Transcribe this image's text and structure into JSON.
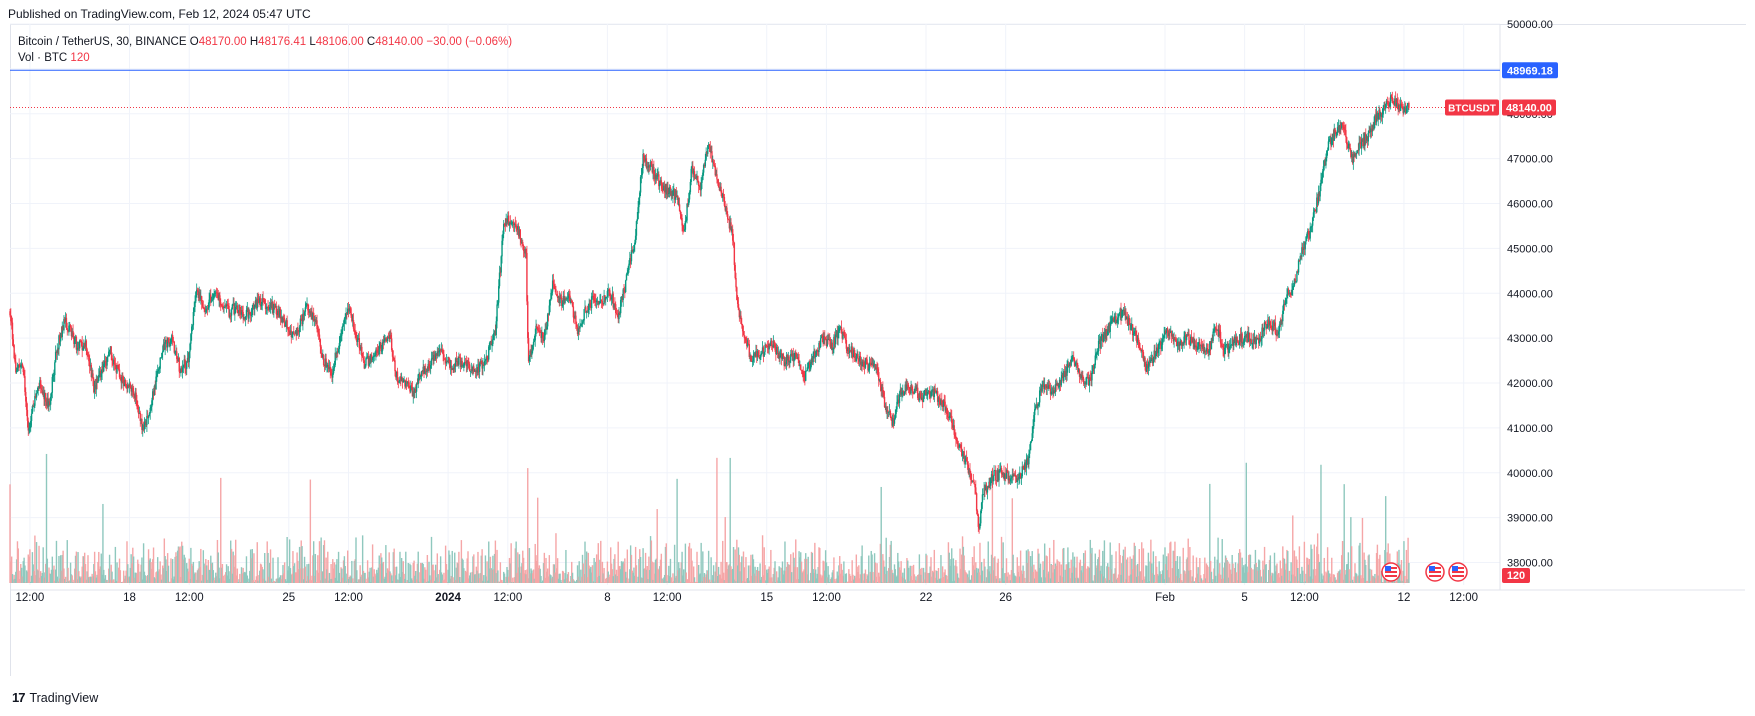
{
  "header": {
    "published": "Published on TradingView.com, Feb 12, 2024 05:47 UTC"
  },
  "legend": {
    "symbol": "Bitcoin / TetherUS, 30, BINANCE",
    "open_label": "O",
    "open": "48170.00",
    "high_label": "H",
    "high": "48176.41",
    "low_label": "L",
    "low": "48106.00",
    "close_label": "C",
    "close": "48140.00",
    "change": "−30.00 (−0.06%)",
    "volume_label": "Vol · BTC",
    "volume": "120"
  },
  "price_line": {
    "value": 48969.18,
    "label": "48969.18",
    "color": "#2962ff"
  },
  "last_price": {
    "ticker": "BTCUSDT",
    "value": 48140.0,
    "label": "48140.00",
    "color": "#f23645"
  },
  "volume_badge": "120",
  "footer": {
    "brand": "TradingView",
    "logo": "17"
  },
  "colors": {
    "up": "#089981",
    "down": "#f23645",
    "up_vol": "#8fc8be",
    "down_vol": "#f5a6a7",
    "grid": "#f0f3fa"
  },
  "chart_data": {
    "type": "candlestick",
    "ylim": [
      37500,
      50000
    ],
    "y_ticks": [
      {
        "value": 50000,
        "label": "50000.00"
      },
      {
        "value": 49000,
        "label": "49000.00"
      },
      {
        "value": 48000,
        "label": "48000.00"
      },
      {
        "value": 47000,
        "label": "47000.00"
      },
      {
        "value": 46000,
        "label": "46000.00"
      },
      {
        "value": 45000,
        "label": "45000.00"
      },
      {
        "value": 44000,
        "label": "44000.00"
      },
      {
        "value": 43000,
        "label": "43000.00"
      },
      {
        "value": 42000,
        "label": "42000.00"
      },
      {
        "value": 41000,
        "label": "41000.00"
      },
      {
        "value": 40000,
        "label": "40000.00"
      },
      {
        "value": 39000,
        "label": "39000.00"
      },
      {
        "value": 38000,
        "label": "38000.00"
      }
    ],
    "x_ticks": [
      {
        "hour": 12,
        "label": "12:00",
        "bold": false
      },
      {
        "hour": 72,
        "label": "18",
        "bold": false
      },
      {
        "hour": 108,
        "label": "12:00",
        "bold": false
      },
      {
        "hour": 168,
        "label": "25",
        "bold": false
      },
      {
        "hour": 204,
        "label": "12:00",
        "bold": false
      },
      {
        "hour": 264,
        "label": "2024",
        "bold": true
      },
      {
        "hour": 300,
        "label": "12:00",
        "bold": false
      },
      {
        "hour": 360,
        "label": "8",
        "bold": false
      },
      {
        "hour": 396,
        "label": "12:00",
        "bold": false
      },
      {
        "hour": 456,
        "label": "15",
        "bold": false
      },
      {
        "hour": 492,
        "label": "12:00",
        "bold": false
      },
      {
        "hour": 552,
        "label": "22",
        "bold": false
      },
      {
        "hour": 600,
        "label": "26",
        "bold": false
      },
      {
        "hour": 696,
        "label": "Feb",
        "bold": false
      },
      {
        "hour": 744,
        "label": "5",
        "bold": false
      },
      {
        "hour": 780,
        "label": "12:00",
        "bold": false
      },
      {
        "hour": 840,
        "label": "12",
        "bold": false
      },
      {
        "hour": 876,
        "label": "12:00",
        "bold": false
      }
    ],
    "x_range_hours": [
      0,
      925
    ],
    "last_candle_hour": 843,
    "candle_interval_hours": 0.5,
    "price_path": [
      [
        0,
        43600
      ],
      [
        3,
        42200
      ],
      [
        6,
        42500
      ],
      [
        9,
        41000
      ],
      [
        14,
        42000
      ],
      [
        19,
        41500
      ],
      [
        23,
        42800
      ],
      [
        27,
        43400
      ],
      [
        33,
        42800
      ],
      [
        37,
        42900
      ],
      [
        41,
        41900
      ],
      [
        45,
        42300
      ],
      [
        49,
        42700
      ],
      [
        53,
        42200
      ],
      [
        58,
        41900
      ],
      [
        62,
        41600
      ],
      [
        65,
        40900
      ],
      [
        70,
        41800
      ],
      [
        75,
        42800
      ],
      [
        79,
        43000
      ],
      [
        83,
        42300
      ],
      [
        87,
        42500
      ],
      [
        91,
        44100
      ],
      [
        95,
        43600
      ],
      [
        99,
        44000
      ],
      [
        103,
        43800
      ],
      [
        107,
        43600
      ],
      [
        111,
        43700
      ],
      [
        115,
        43500
      ],
      [
        121,
        43800
      ],
      [
        127,
        43700
      ],
      [
        131,
        43600
      ],
      [
        135,
        43300
      ],
      [
        139,
        43000
      ],
      [
        145,
        43700
      ],
      [
        149,
        43400
      ],
      [
        153,
        42500
      ],
      [
        157,
        42200
      ],
      [
        161,
        43000
      ],
      [
        165,
        43700
      ],
      [
        169,
        43100
      ],
      [
        173,
        42400
      ],
      [
        177,
        42600
      ],
      [
        181,
        42800
      ],
      [
        185,
        43100
      ],
      [
        189,
        42100
      ],
      [
        193,
        42000
      ],
      [
        197,
        41800
      ],
      [
        201,
        42300
      ],
      [
        205,
        42400
      ],
      [
        209,
        42800
      ],
      [
        215,
        42400
      ],
      [
        221,
        42500
      ],
      [
        227,
        42200
      ],
      [
        233,
        42600
      ],
      [
        237,
        43200
      ],
      [
        241,
        45500
      ],
      [
        245,
        45700
      ],
      [
        249,
        45300
      ],
      [
        252,
        44800
      ],
      [
        253,
        42400
      ],
      [
        257,
        43200
      ],
      [
        261,
        43000
      ],
      [
        265,
        44200
      ],
      [
        269,
        43800
      ],
      [
        273,
        44000
      ],
      [
        277,
        43200
      ],
      [
        281,
        43600
      ],
      [
        285,
        43900
      ],
      [
        289,
        43800
      ],
      [
        293,
        44000
      ],
      [
        297,
        43500
      ],
      [
        301,
        44300
      ],
      [
        305,
        45200
      ],
      [
        309,
        47000
      ],
      [
        313,
        46800
      ],
      [
        317,
        46500
      ],
      [
        321,
        46300
      ],
      [
        325,
        46200
      ],
      [
        329,
        45300
      ],
      [
        333,
        46800
      ],
      [
        337,
        46300
      ],
      [
        341,
        47400
      ],
      [
        345,
        46500
      ],
      [
        349,
        46000
      ],
      [
        353,
        45200
      ],
      [
        355,
        43800
      ],
      [
        358,
        43000
      ],
      [
        362,
        42600
      ],
      [
        366,
        42600
      ],
      [
        372,
        42900
      ],
      [
        378,
        42500
      ],
      [
        384,
        42600
      ],
      [
        388,
        42100
      ],
      [
        393,
        42700
      ],
      [
        397,
        43000
      ],
      [
        401,
        42800
      ],
      [
        405,
        43200
      ],
      [
        409,
        42800
      ],
      [
        413,
        42600
      ],
      [
        419,
        42400
      ],
      [
        423,
        42400
      ],
      [
        427,
        41500
      ],
      [
        431,
        41100
      ],
      [
        435,
        41800
      ],
      [
        439,
        41900
      ],
      [
        445,
        41700
      ],
      [
        451,
        41800
      ],
      [
        455,
        41600
      ],
      [
        459,
        41200
      ],
      [
        463,
        40600
      ],
      [
        467,
        40200
      ],
      [
        471,
        39700
      ],
      [
        473,
        38800
      ],
      [
        475,
        39500
      ],
      [
        479,
        39900
      ],
      [
        485,
        40000
      ],
      [
        491,
        39800
      ],
      [
        497,
        40300
      ],
      [
        501,
        41500
      ],
      [
        505,
        42000
      ],
      [
        509,
        41800
      ],
      [
        515,
        42200
      ],
      [
        519,
        42600
      ],
      [
        523,
        42100
      ],
      [
        527,
        42000
      ],
      [
        531,
        42800
      ],
      [
        535,
        43100
      ],
      [
        539,
        43400
      ],
      [
        543,
        43600
      ],
      [
        547,
        43300
      ],
      [
        551,
        42900
      ],
      [
        555,
        42300
      ],
      [
        561,
        42800
      ],
      [
        565,
        43200
      ],
      [
        569,
        42900
      ],
      [
        575,
        43000
      ],
      [
        581,
        42800
      ],
      [
        585,
        42700
      ],
      [
        589,
        43300
      ],
      [
        593,
        42700
      ],
      [
        597,
        42900
      ],
      [
        601,
        43000
      ],
      [
        605,
        43000
      ],
      [
        609,
        42900
      ],
      [
        613,
        43300
      ],
      [
        617,
        43300
      ],
      [
        619,
        43100
      ],
      [
        623,
        43900
      ],
      [
        627,
        44200
      ],
      [
        631,
        45000
      ],
      [
        635,
        45400
      ],
      [
        639,
        46200
      ],
      [
        643,
        47200
      ],
      [
        647,
        47600
      ],
      [
        651,
        47700
      ],
      [
        655,
        47000
      ],
      [
        659,
        47300
      ],
      [
        663,
        47500
      ],
      [
        667,
        47900
      ],
      [
        671,
        48100
      ],
      [
        675,
        48350
      ],
      [
        679,
        48100
      ],
      [
        683,
        48140
      ]
    ],
    "volume": {
      "baseline_max": 6,
      "spike_hours": [
        0,
        18,
        45,
        103,
        147,
        253,
        258,
        316,
        326,
        345,
        349,
        352,
        425,
        480,
        489,
        586,
        604,
        626,
        640,
        651,
        655,
        660,
        672
      ],
      "ymax": 20
    }
  }
}
